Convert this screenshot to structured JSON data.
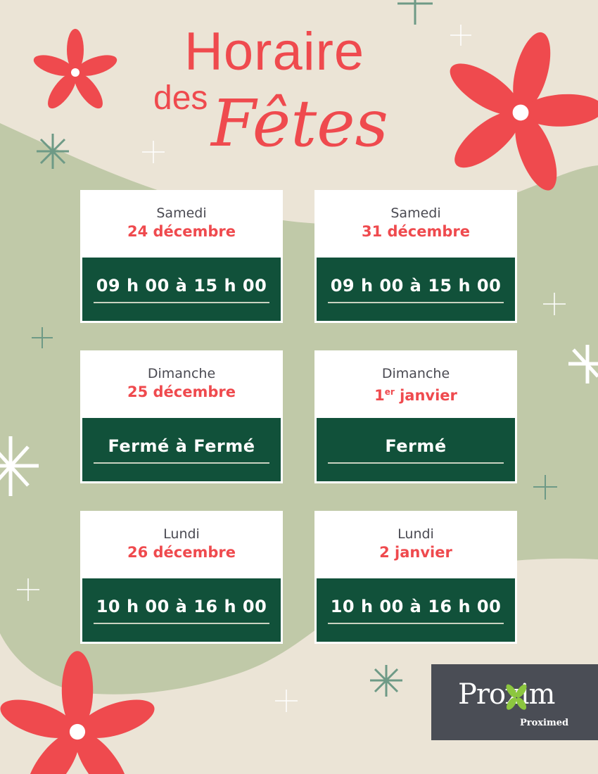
{
  "title": {
    "line1": "Horaire",
    "line2": "des",
    "line3": "Fêtes"
  },
  "colors": {
    "background": "#ebe4d6",
    "green_shape": "#c0c9a8",
    "accent_red": "#ef4a4e",
    "card_green": "#11513a",
    "logo_bg": "#4a4d55",
    "logo_green": "#8cc63f"
  },
  "schedule": [
    {
      "day": "Samedi",
      "date": "24 décembre",
      "hours": "09 h 00 à 15 h 00"
    },
    {
      "day": "Samedi",
      "date": "31 décembre",
      "hours": "09 h 00 à 15 h 00"
    },
    {
      "day": "Dimanche",
      "date": "25 décembre",
      "hours": "Fermé à Fermé"
    },
    {
      "day": "Dimanche",
      "date_num": "1",
      "date_sup": "er",
      "date_rest": " janvier",
      "hours": "Fermé"
    },
    {
      "day": "Lundi",
      "date": "26 décembre",
      "hours": "10 h 00 à 16 h 00"
    },
    {
      "day": "Lundi",
      "date": "2 janvier",
      "hours": "10 h 00 à 16 h 00"
    }
  ],
  "logo": {
    "main": "Proxim",
    "sub": "Proximed"
  }
}
